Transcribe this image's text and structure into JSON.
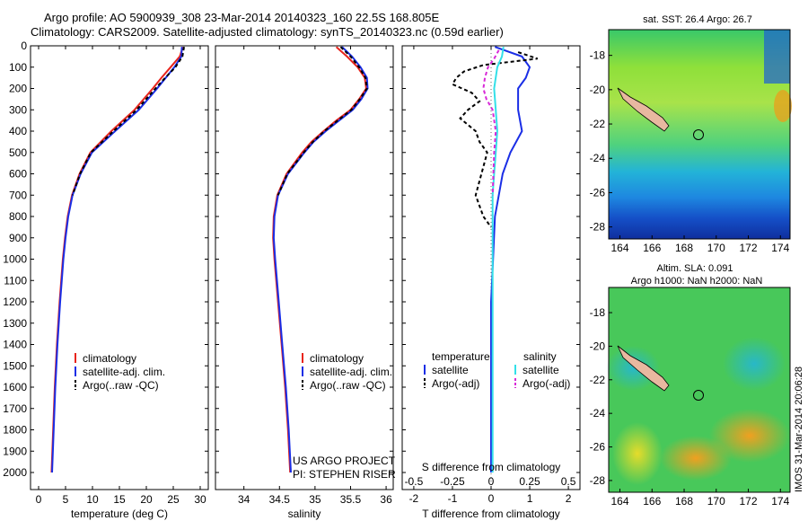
{
  "header": {
    "line1": "Argo profile: AO 5900939_308 23-Mar-2014 20140323_160 22.5S 168.805E",
    "line2": "Climatology: CARS2009. Satellite-adjusted climatology: synTS_20140323.nc (0.59d earlier)"
  },
  "colors": {
    "climatology": "#e8241c",
    "satellite": "#1a2ee6",
    "argo": "#000000",
    "sal_sat": "#33e0e8",
    "sal_argo": "#d829d8"
  },
  "chart_data": [
    {
      "type": "line",
      "id": "temperature",
      "xlabel": "temperature (deg C)",
      "ylabel": "",
      "xlim": [
        -1.5,
        31.5
      ],
      "ylim": [
        0,
        2080
      ],
      "xticks": [
        "0",
        "5",
        "10",
        "15",
        "20",
        "25",
        "30"
      ],
      "yticks": [
        "0",
        "100",
        "200",
        "300",
        "400",
        "500",
        "600",
        "700",
        "800",
        "900",
        "1000",
        "1100",
        "1200",
        "1300",
        "1400",
        "1500",
        "1600",
        "1700",
        "1800",
        "1900",
        "2000"
      ],
      "legend": [
        "climatology",
        "satellite-adj. clim.",
        "Argo(..raw -QC)"
      ],
      "series": [
        {
          "name": "climatology",
          "depth": [
            5,
            50,
            100,
            150,
            200,
            300,
            400,
            500,
            600,
            700,
            800,
            900,
            1000,
            1200,
            1400,
            1600,
            1800,
            2000
          ],
          "values": [
            26.8,
            26.2,
            24.5,
            22.8,
            21.2,
            17.8,
            13.5,
            9.6,
            7.6,
            6.2,
            5.4,
            4.9,
            4.5,
            3.9,
            3.4,
            3.0,
            2.7,
            2.4
          ]
        },
        {
          "name": "satellite-adj. clim.",
          "depth": [
            5,
            50,
            100,
            150,
            200,
            300,
            400,
            500,
            600,
            700,
            800,
            900,
            1000,
            1200,
            1400,
            1600,
            1800,
            2000
          ],
          "values": [
            26.6,
            26.5,
            25.2,
            23.6,
            22.0,
            18.6,
            14.2,
            9.9,
            7.8,
            6.3,
            5.5,
            5.0,
            4.6,
            4.0,
            3.5,
            3.1,
            2.8,
            2.5
          ]
        },
        {
          "name": "Argo(..raw -QC)",
          "depth": [
            5,
            50,
            100,
            150,
            200,
            300,
            400,
            500,
            600,
            700
          ],
          "values": [
            27.0,
            26.7,
            25.4,
            23.5,
            21.7,
            18.2,
            13.9,
            9.7,
            7.7,
            6.3
          ]
        }
      ]
    },
    {
      "type": "line",
      "id": "salinity",
      "xlabel": "salinity",
      "xlim": [
        33.6,
        36.1
      ],
      "ylim": [
        0,
        2080
      ],
      "xticks": [
        "34",
        "34.5",
        "35",
        "35.5",
        "36"
      ],
      "legend": [
        "climatology",
        "satellite-adj. clim.",
        "Argo(..raw -QC)"
      ],
      "series": [
        {
          "name": "climatology",
          "depth": [
            5,
            50,
            100,
            150,
            200,
            250,
            300,
            350,
            400,
            450,
            500,
            600,
            700,
            800,
            900,
            1000,
            1200,
            1400,
            1600,
            1800,
            2000
          ],
          "values": [
            35.3,
            35.45,
            35.6,
            35.7,
            35.72,
            35.62,
            35.5,
            35.3,
            35.12,
            34.95,
            34.82,
            34.6,
            34.47,
            34.42,
            34.41,
            34.43,
            34.48,
            34.53,
            34.58,
            34.62,
            34.65
          ]
        },
        {
          "name": "satellite-adj. clim.",
          "depth": [
            5,
            50,
            100,
            150,
            200,
            250,
            300,
            350,
            400,
            450,
            500,
            600,
            700,
            800,
            900,
            1000,
            1200,
            1400,
            1600,
            1800,
            2000
          ],
          "values": [
            35.38,
            35.52,
            35.64,
            35.73,
            35.74,
            35.65,
            35.53,
            35.34,
            35.15,
            34.98,
            34.85,
            34.62,
            34.48,
            34.43,
            34.42,
            34.44,
            34.49,
            34.54,
            34.59,
            34.63,
            34.66
          ]
        },
        {
          "name": "Argo(..raw -QC)",
          "depth": [
            5,
            50,
            100,
            150,
            200,
            250,
            300,
            350,
            400,
            450,
            500,
            600,
            700
          ],
          "values": [
            35.36,
            35.5,
            35.62,
            35.71,
            35.73,
            35.63,
            35.51,
            35.32,
            35.13,
            34.97,
            34.84,
            34.61,
            34.48
          ]
        }
      ]
    },
    {
      "type": "line",
      "id": "difference",
      "xlabel": "T difference from climatology",
      "xlabel_top": "S difference from climatology",
      "xlim": [
        -2.3,
        2.3
      ],
      "ylim": [
        0,
        2080
      ],
      "xticks": [
        "-2",
        "-1",
        "0",
        "1",
        "2"
      ],
      "sticks": [
        "-0.5",
        "-0.25",
        "0",
        "0.25",
        "0.5"
      ],
      "legend_left_title": "temperature",
      "legend_right_title": "salinity",
      "legend": [
        "satellite",
        "Argo(-adj)",
        "satellite",
        "Argo(-adj)"
      ],
      "series": [
        {
          "name": "T satellite",
          "depth": [
            5,
            50,
            100,
            150,
            200,
            300,
            400,
            500,
            600,
            700,
            800,
            1000,
            1200,
            1500,
            2000
          ],
          "values": [
            0.1,
            0.8,
            1.0,
            0.9,
            0.7,
            0.7,
            0.8,
            0.5,
            0.3,
            0.2,
            0.1,
            0.05,
            0.0,
            0.0,
            0.0
          ]
        },
        {
          "name": "T Argo(-adj)",
          "depth": [
            30,
            60,
            90,
            120,
            150,
            180,
            220,
            260,
            300,
            340,
            400,
            450,
            500,
            700,
            750,
            800,
            850
          ],
          "values": [
            0.7,
            1.2,
            -0.2,
            -0.7,
            -0.9,
            -1.0,
            -0.5,
            -0.3,
            -0.6,
            -0.8,
            -0.4,
            -0.3,
            -0.1,
            -0.4,
            -0.3,
            -0.2,
            0.0
          ]
        },
        {
          "name": "S satellite",
          "depth": [
            5,
            50,
            100,
            200,
            300,
            400,
            500,
            600,
            700,
            800,
            1000,
            1500,
            2000
          ],
          "values": [
            0.08,
            0.07,
            0.04,
            0.02,
            0.03,
            0.04,
            0.03,
            0.02,
            0.01,
            0.01,
            0.01,
            0.01,
            0.01
          ]
        },
        {
          "name": "S Argo(-adj)",
          "depth": [
            20,
            60,
            100,
            150,
            200,
            250,
            300,
            400,
            500,
            700
          ],
          "values": [
            0.05,
            0.02,
            -0.02,
            -0.04,
            -0.05,
            -0.03,
            0.01,
            0.03,
            0.02,
            0.01
          ]
        }
      ]
    }
  ],
  "maps": [
    {
      "title": "sat. SST: 26.4 Argo: 26.7",
      "xticks": [
        "164",
        "166",
        "168",
        "170",
        "172",
        "174"
      ],
      "yticks": [
        "-18",
        "-20",
        "-22",
        "-24",
        "-26",
        "-28"
      ]
    },
    {
      "title": "Altim. SLA: 0.091",
      "subtitle": "Argo h1000: NaN h2000: NaN",
      "xticks": [
        "164",
        "166",
        "168",
        "170",
        "172",
        "174"
      ],
      "yticks": [
        "-18",
        "-20",
        "-22",
        "-24",
        "-26",
        "-28"
      ]
    }
  ],
  "credits": {
    "project": "US ARGO PROJECT",
    "pi": "PI: STEPHEN RISER",
    "stamp": "IMOS 31-Mar-2014 20:06:28"
  }
}
